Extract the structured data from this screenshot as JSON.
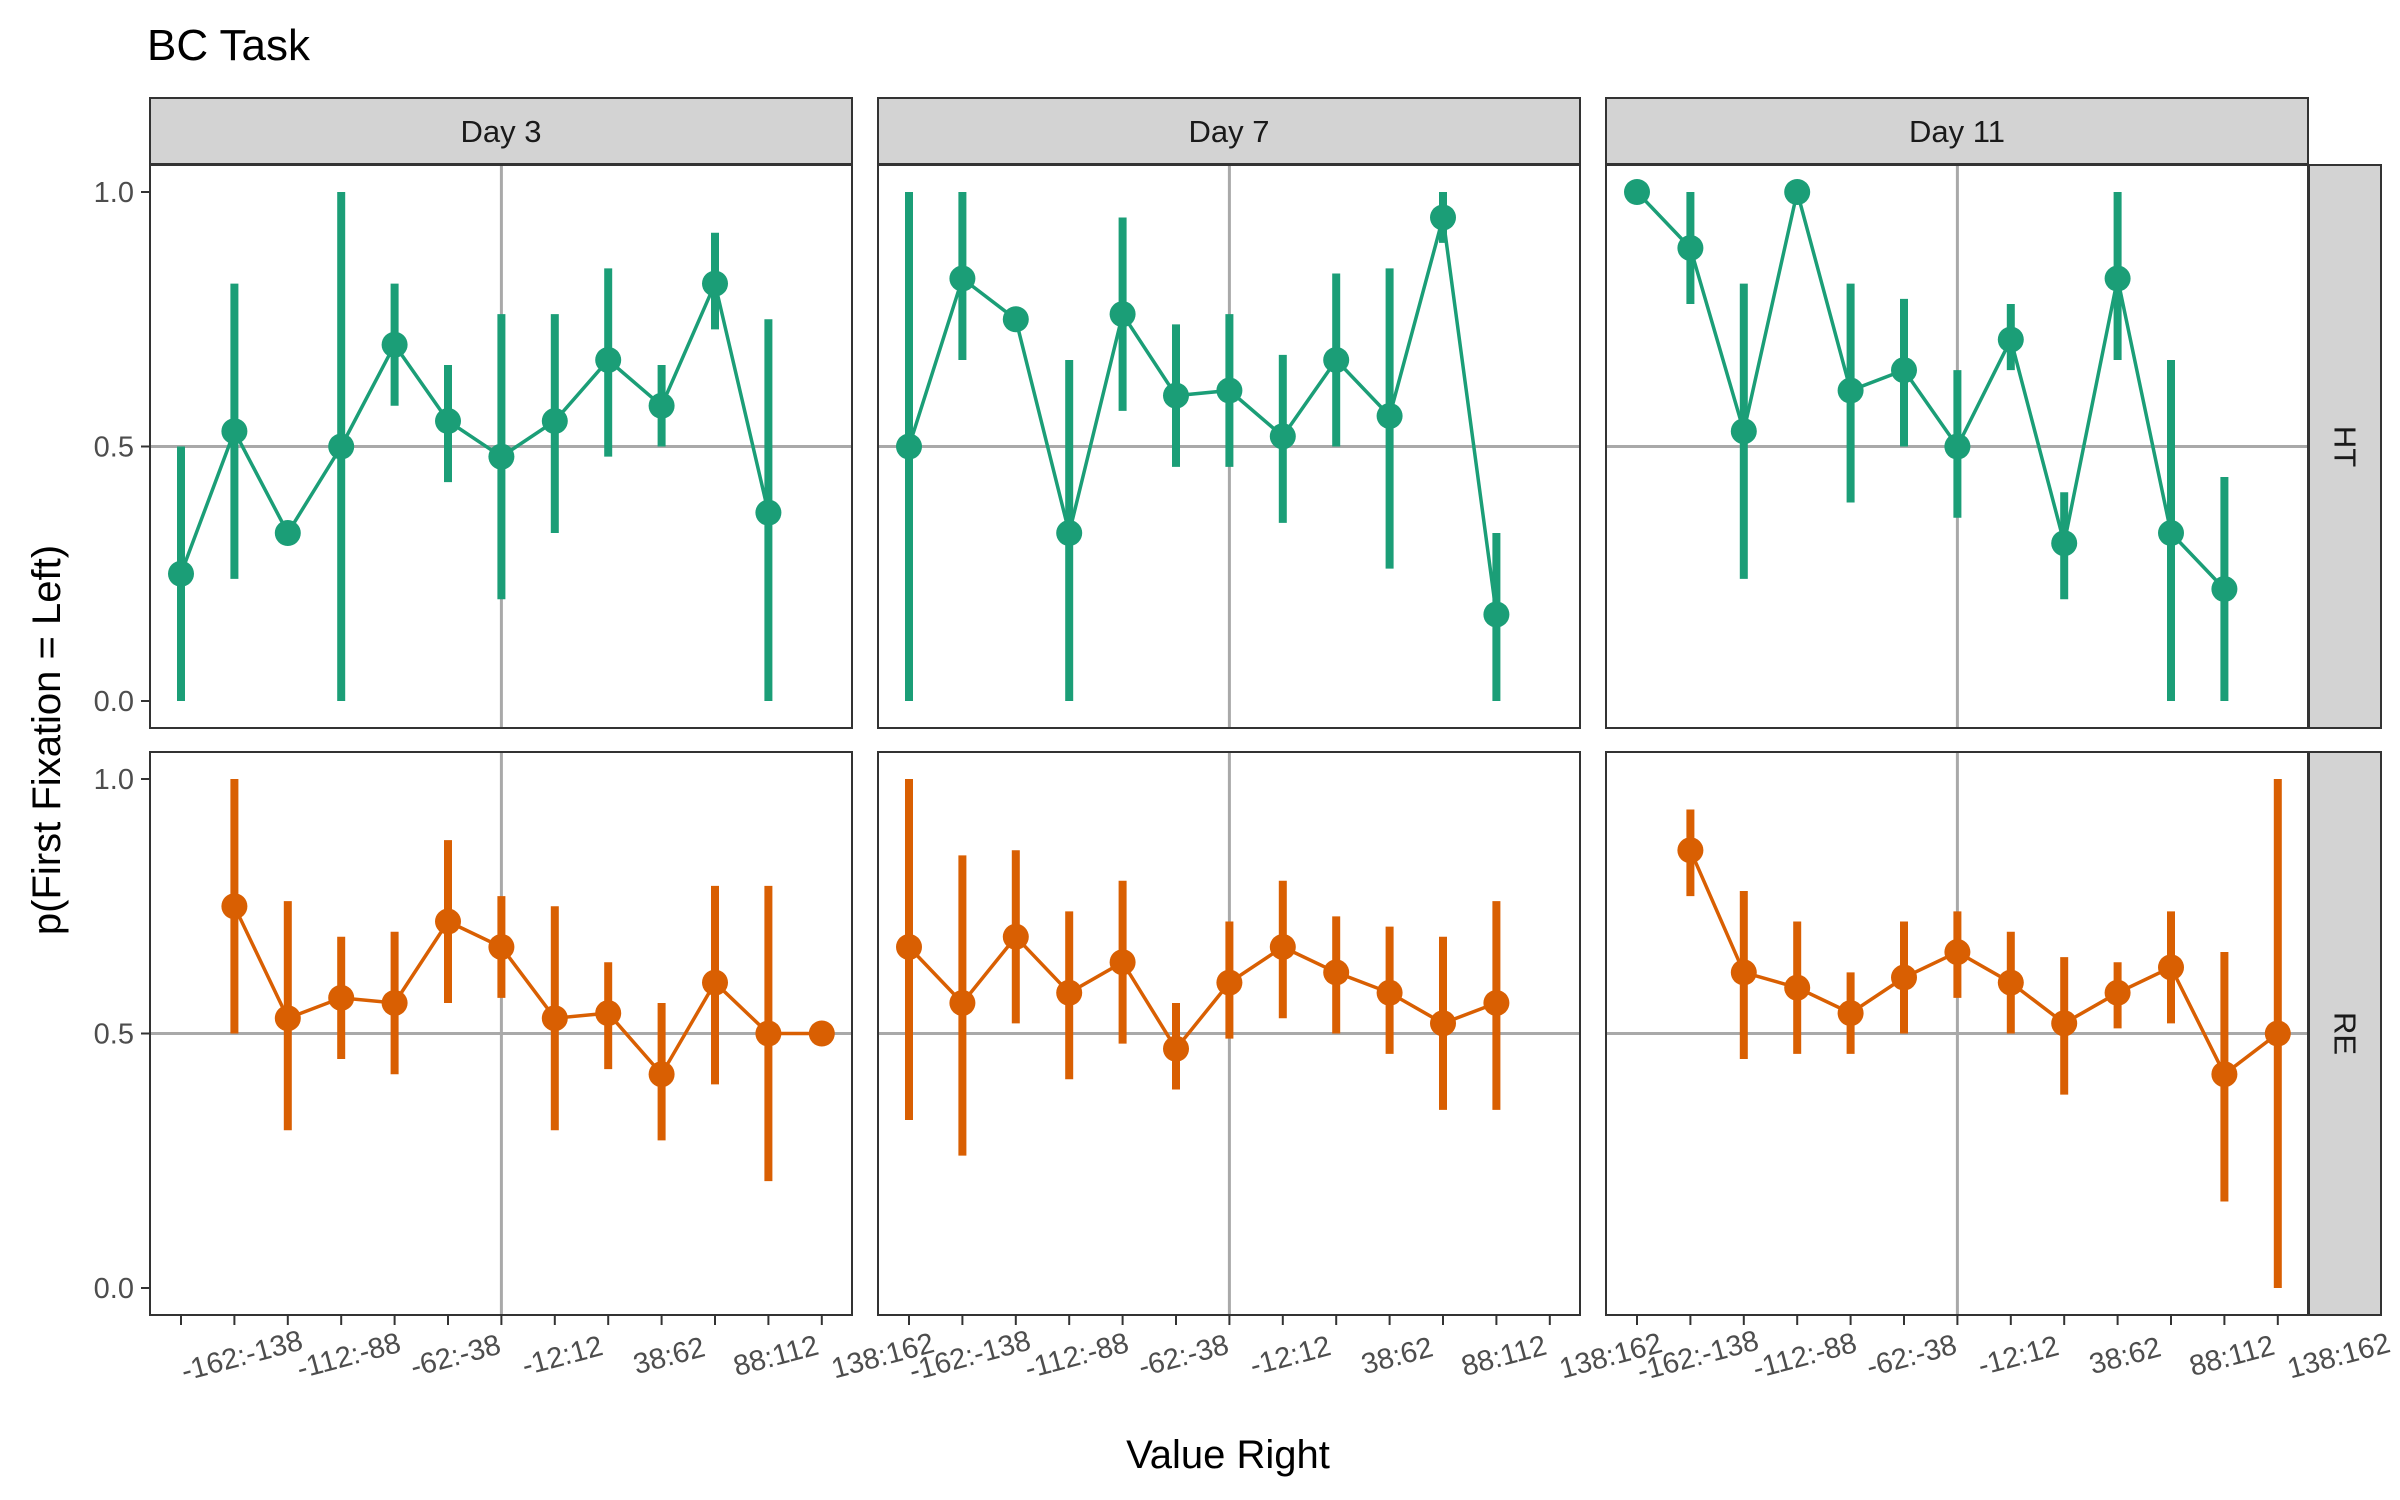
{
  "chart_data": {
    "type": "line",
    "title": "BC Task",
    "xlabel": "Value Right",
    "ylabel": "p(First Fixation = Left)",
    "ylim": [
      0,
      1
    ],
    "yticks": [
      "0.0",
      "0.5",
      "1.0"
    ],
    "x_tick_labels": [
      "-162:-138",
      "-112:-88",
      "-62:-38",
      "-12:12",
      "38:62",
      "88:112",
      "138:162"
    ],
    "x_categories_count": 13,
    "x_reference_line_index": 6,
    "y_reference_line": 0.5,
    "grid": false,
    "legend": "none",
    "columns": [
      "Day 3",
      "Day 7",
      "Day 11"
    ],
    "rows": [
      "HT",
      "RE"
    ],
    "colors": {
      "HT": "#1b9e77",
      "RE": "#d95f02"
    },
    "panels": [
      {
        "column": "Day 3",
        "row": "HT",
        "points": [
          {
            "i": 0,
            "y": 0.25,
            "lo": 0.0,
            "hi": 0.5
          },
          {
            "i": 1,
            "y": 0.53,
            "lo": 0.24,
            "hi": 0.82
          },
          {
            "i": 2,
            "y": 0.33,
            "lo": null,
            "hi": null
          },
          {
            "i": 3,
            "y": 0.5,
            "lo": 0.0,
            "hi": 1.0
          },
          {
            "i": 4,
            "y": 0.7,
            "lo": 0.58,
            "hi": 0.82
          },
          {
            "i": 5,
            "y": 0.55,
            "lo": 0.43,
            "hi": 0.66
          },
          {
            "i": 6,
            "y": 0.48,
            "lo": 0.2,
            "hi": 0.76
          },
          {
            "i": 7,
            "y": 0.55,
            "lo": 0.33,
            "hi": 0.76
          },
          {
            "i": 8,
            "y": 0.67,
            "lo": 0.48,
            "hi": 0.85
          },
          {
            "i": 9,
            "y": 0.58,
            "lo": 0.5,
            "hi": 0.66
          },
          {
            "i": 10,
            "y": 0.82,
            "lo": 0.73,
            "hi": 0.92
          },
          {
            "i": 11,
            "y": 0.37,
            "lo": 0.0,
            "hi": 0.75
          }
        ]
      },
      {
        "column": "Day 7",
        "row": "HT",
        "points": [
          {
            "i": 0,
            "y": 0.5,
            "lo": 0.0,
            "hi": 1.0
          },
          {
            "i": 1,
            "y": 0.83,
            "lo": 0.67,
            "hi": 1.0
          },
          {
            "i": 2,
            "y": 0.75,
            "lo": null,
            "hi": null
          },
          {
            "i": 3,
            "y": 0.33,
            "lo": 0.0,
            "hi": 0.67
          },
          {
            "i": 4,
            "y": 0.76,
            "lo": 0.57,
            "hi": 0.95
          },
          {
            "i": 5,
            "y": 0.6,
            "lo": 0.46,
            "hi": 0.74
          },
          {
            "i": 6,
            "y": 0.61,
            "lo": 0.46,
            "hi": 0.76
          },
          {
            "i": 7,
            "y": 0.52,
            "lo": 0.35,
            "hi": 0.68
          },
          {
            "i": 8,
            "y": 0.67,
            "lo": 0.5,
            "hi": 0.84
          },
          {
            "i": 9,
            "y": 0.56,
            "lo": 0.26,
            "hi": 0.85
          },
          {
            "i": 10,
            "y": 0.95,
            "lo": 0.9,
            "hi": 1.0
          },
          {
            "i": 11,
            "y": 0.17,
            "lo": 0.0,
            "hi": 0.33
          }
        ]
      },
      {
        "column": "Day 11",
        "row": "HT",
        "points": [
          {
            "i": 0,
            "y": 1.0,
            "lo": null,
            "hi": null
          },
          {
            "i": 1,
            "y": 0.89,
            "lo": 0.78,
            "hi": 1.0
          },
          {
            "i": 2,
            "y": 0.53,
            "lo": 0.24,
            "hi": 0.82
          },
          {
            "i": 3,
            "y": 1.0,
            "lo": null,
            "hi": null
          },
          {
            "i": 4,
            "y": 0.61,
            "lo": 0.39,
            "hi": 0.82
          },
          {
            "i": 5,
            "y": 0.65,
            "lo": 0.5,
            "hi": 0.79
          },
          {
            "i": 6,
            "y": 0.5,
            "lo": 0.36,
            "hi": 0.65
          },
          {
            "i": 7,
            "y": 0.71,
            "lo": 0.65,
            "hi": 0.78
          },
          {
            "i": 8,
            "y": 0.31,
            "lo": 0.2,
            "hi": 0.41
          },
          {
            "i": 9,
            "y": 0.83,
            "lo": 0.67,
            "hi": 1.0
          },
          {
            "i": 10,
            "y": 0.33,
            "lo": 0.0,
            "hi": 0.67
          },
          {
            "i": 11,
            "y": 0.22,
            "lo": 0.0,
            "hi": 0.44
          }
        ]
      },
      {
        "column": "Day 3",
        "row": "RE",
        "points": [
          {
            "i": 1,
            "y": 0.75,
            "lo": 0.5,
            "hi": 1.0
          },
          {
            "i": 2,
            "y": 0.53,
            "lo": 0.31,
            "hi": 0.76
          },
          {
            "i": 3,
            "y": 0.57,
            "lo": 0.45,
            "hi": 0.69
          },
          {
            "i": 4,
            "y": 0.56,
            "lo": 0.42,
            "hi": 0.7
          },
          {
            "i": 5,
            "y": 0.72,
            "lo": 0.56,
            "hi": 0.88
          },
          {
            "i": 6,
            "y": 0.67,
            "lo": 0.57,
            "hi": 0.77
          },
          {
            "i": 7,
            "y": 0.53,
            "lo": 0.31,
            "hi": 0.75
          },
          {
            "i": 8,
            "y": 0.54,
            "lo": 0.43,
            "hi": 0.64
          },
          {
            "i": 9,
            "y": 0.42,
            "lo": 0.29,
            "hi": 0.56
          },
          {
            "i": 10,
            "y": 0.6,
            "lo": 0.4,
            "hi": 0.79
          },
          {
            "i": 11,
            "y": 0.5,
            "lo": 0.21,
            "hi": 0.79
          },
          {
            "i": 12,
            "y": 0.5,
            "lo": null,
            "hi": null
          }
        ]
      },
      {
        "column": "Day 7",
        "row": "RE",
        "points": [
          {
            "i": 0,
            "y": 0.67,
            "lo": 0.33,
            "hi": 1.0
          },
          {
            "i": 1,
            "y": 0.56,
            "lo": 0.26,
            "hi": 0.85
          },
          {
            "i": 2,
            "y": 0.69,
            "lo": 0.52,
            "hi": 0.86
          },
          {
            "i": 3,
            "y": 0.58,
            "lo": 0.41,
            "hi": 0.74
          },
          {
            "i": 4,
            "y": 0.64,
            "lo": 0.48,
            "hi": 0.8
          },
          {
            "i": 5,
            "y": 0.47,
            "lo": 0.39,
            "hi": 0.56
          },
          {
            "i": 6,
            "y": 0.6,
            "lo": 0.49,
            "hi": 0.72
          },
          {
            "i": 7,
            "y": 0.67,
            "lo": 0.53,
            "hi": 0.8
          },
          {
            "i": 8,
            "y": 0.62,
            "lo": 0.5,
            "hi": 0.73
          },
          {
            "i": 9,
            "y": 0.58,
            "lo": 0.46,
            "hi": 0.71
          },
          {
            "i": 10,
            "y": 0.52,
            "lo": 0.35,
            "hi": 0.69
          },
          {
            "i": 11,
            "y": 0.56,
            "lo": 0.35,
            "hi": 0.76
          }
        ]
      },
      {
        "column": "Day 11",
        "row": "RE",
        "points": [
          {
            "i": 1,
            "y": 0.86,
            "lo": 0.77,
            "hi": 0.94
          },
          {
            "i": 2,
            "y": 0.62,
            "lo": 0.45,
            "hi": 0.78
          },
          {
            "i": 3,
            "y": 0.59,
            "lo": 0.46,
            "hi": 0.72
          },
          {
            "i": 4,
            "y": 0.54,
            "lo": 0.46,
            "hi": 0.62
          },
          {
            "i": 5,
            "y": 0.61,
            "lo": 0.5,
            "hi": 0.72
          },
          {
            "i": 6,
            "y": 0.66,
            "lo": 0.57,
            "hi": 0.74
          },
          {
            "i": 7,
            "y": 0.6,
            "lo": 0.5,
            "hi": 0.7
          },
          {
            "i": 8,
            "y": 0.52,
            "lo": 0.38,
            "hi": 0.65
          },
          {
            "i": 9,
            "y": 0.58,
            "lo": 0.51,
            "hi": 0.64
          },
          {
            "i": 10,
            "y": 0.63,
            "lo": 0.52,
            "hi": 0.74
          },
          {
            "i": 11,
            "y": 0.42,
            "lo": 0.17,
            "hi": 0.66
          },
          {
            "i": 12,
            "y": 0.5,
            "lo": 0.0,
            "hi": 1.0
          }
        ]
      }
    ]
  }
}
